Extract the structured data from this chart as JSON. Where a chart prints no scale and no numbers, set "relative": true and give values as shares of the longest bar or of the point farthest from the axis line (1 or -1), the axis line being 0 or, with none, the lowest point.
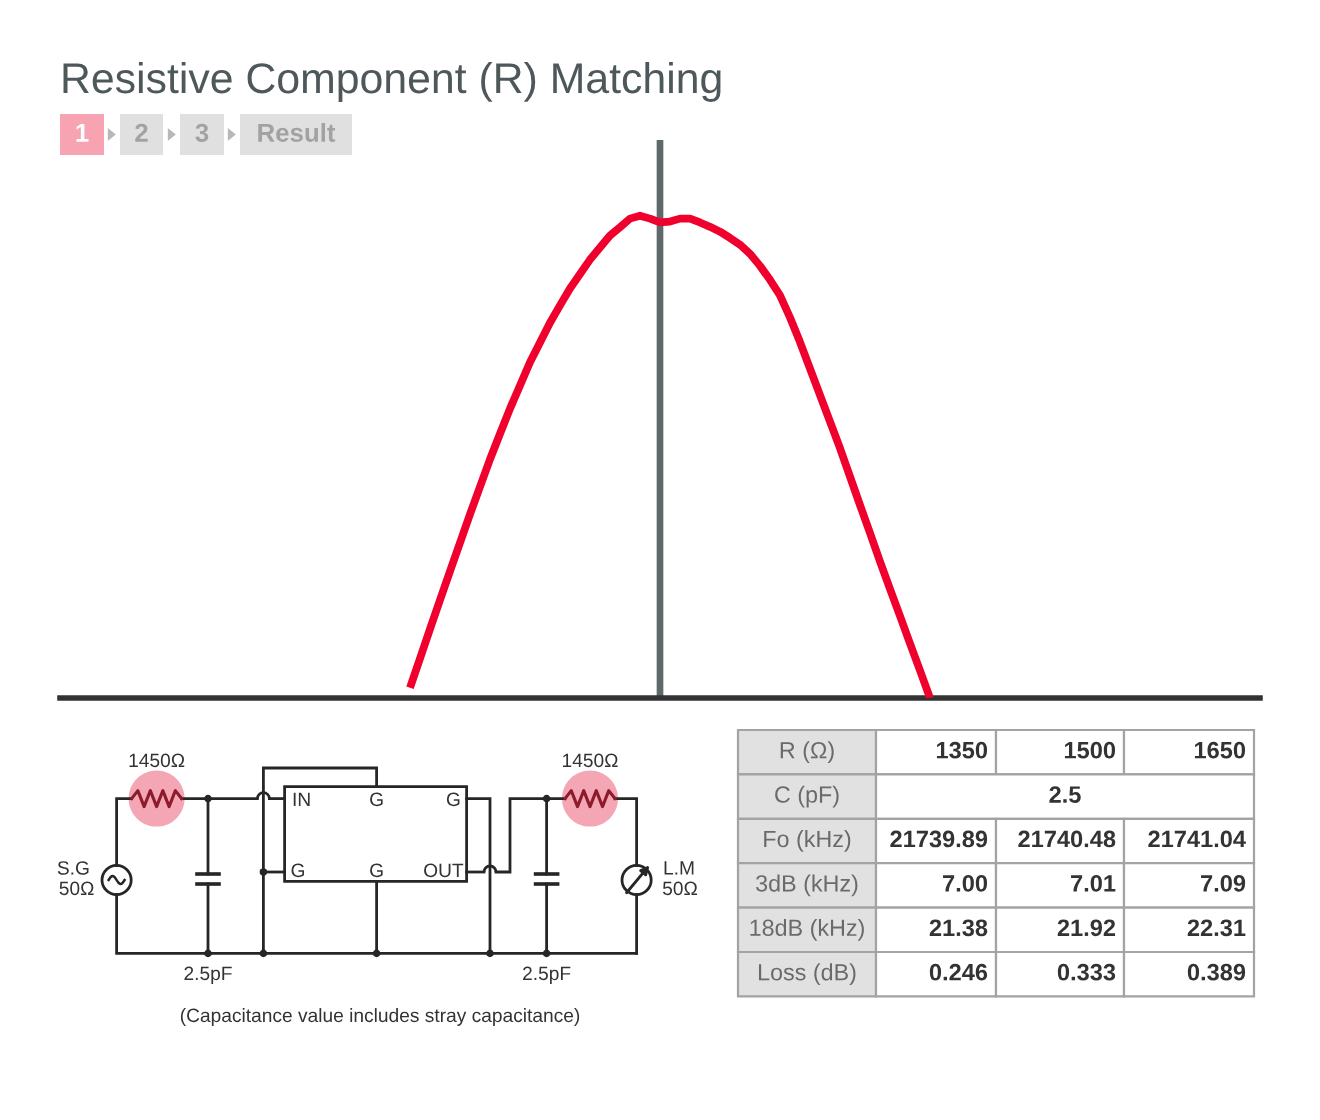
{
  "chart_data": {
    "type": "line",
    "relative": true,
    "title": "Resistive Component (R) Matching",
    "categories": [
      null,
      null,
      null,
      null,
      null,
      null,
      null,
      null,
      null,
      null,
      null,
      null,
      null,
      null,
      null,
      null,
      null,
      null,
      null,
      null,
      null,
      null,
      null,
      null,
      null,
      null,
      null,
      null,
      null,
      null,
      null,
      null,
      null,
      null,
      null,
      null,
      null,
      null,
      null,
      null,
      null,
      null,
      null,
      null,
      null,
      null,
      null,
      null,
      null,
      null,
      null,
      null,
      null,
      null,
      null,
      null,
      null,
      null,
      null,
      null,
      null,
      null,
      null,
      null,
      null,
      null,
      null,
      null,
      null,
      null,
      null,
      null,
      null,
      null,
      null,
      null,
      null,
      null,
      null,
      null,
      null,
      null,
      null,
      null,
      null,
      null,
      null,
      null,
      null,
      null,
      null,
      null,
      null,
      null,
      null,
      null,
      null,
      null,
      null,
      null,
      null,
      null,
      null,
      null,
      null,
      null,
      null,
      null,
      null,
      null,
      null,
      null,
      null,
      null,
      null,
      null,
      null,
      null,
      null,
      null,
      null
    ],
    "series": [
      {
        "color": "#f0002d",
        "values": [
          null,
          null,
          null,
          null,
          null,
          null,
          null,
          null,
          null,
          null,
          null,
          null,
          null,
          null,
          null,
          null,
          null,
          null,
          null,
          null,
          null,
          null,
          null,
          null,
          null,
          null,
          null,
          null,
          null,
          null,
          null,
          null,
          null,
          null,
          null,
          0.021,
          0.082,
          0.143,
          0.203,
          0.263,
          0.322,
          0.381,
          0.438,
          0.495,
          0.548,
          0.6,
          0.648,
          0.696,
          0.737,
          0.778,
          0.814,
          0.849,
          0.879,
          0.909,
          0.934,
          0.959,
          0.976,
          0.994,
          1,
          0.994,
          0.986,
          0.988,
          0.994,
          0.994,
          0.986,
          0.977,
          0.967,
          0.954,
          0.94,
          0.921,
          0.896,
          0.867,
          0.835,
          0.789,
          0.738,
          0.683,
          0.628,
          0.573,
          0.518,
          0.459,
          0.4,
          0.342,
          0.283,
          0.226,
          0.17,
          0.113,
          0.057,
          0,
          null,
          null,
          null,
          null,
          null,
          null,
          null,
          null,
          null,
          null,
          null,
          null,
          null,
          null,
          null,
          null,
          null,
          null,
          null,
          null,
          null,
          null,
          null,
          null,
          null,
          null,
          null,
          null,
          null,
          null,
          null,
          null,
          null
        ]
      }
    ],
    "annotations": [
      "1",
      "2",
      "3",
      "Result",
      "1450Ω",
      "1450Ω",
      "IN",
      "G",
      "G",
      "G",
      "G",
      "OUT",
      "S.G",
      "50Ω",
      "L.M",
      "50Ω",
      "2.5pF",
      "2.5pF",
      "(Capacitance value includes stray capacitance)",
      "R (Ω)",
      "1350",
      "1500",
      "1650",
      "C (pF)",
      "2.5",
      "Fo (kHz)",
      "21739.89",
      "21740.48",
      "21741.04",
      "3dB (kHz)",
      "7.00",
      "7.01",
      "7.09",
      "18dB (kHz)",
      "21.38",
      "21.92",
      "22.31",
      "Loss (dB)",
      "0.246",
      "0.333",
      "0.389"
    ]
  }
}
